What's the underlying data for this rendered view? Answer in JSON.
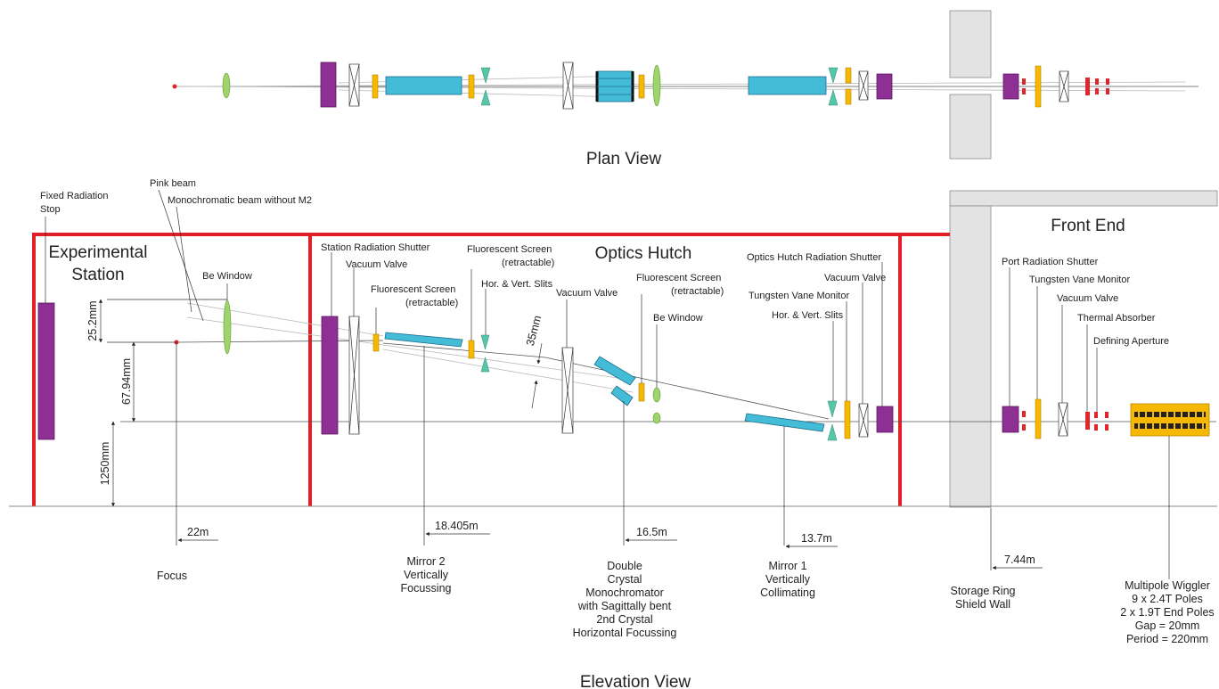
{
  "colors": {
    "hutch_wall": "#e11f26",
    "shutter": "#8e2f93",
    "mirror": "#44bcd8",
    "screen": "#f6b800",
    "window": "#9fd36b",
    "slits": "#56c6a8",
    "absorber": "#e0262c",
    "shield_wall": "#e3e3e3",
    "wiggler": "#f6b800"
  },
  "views": {
    "plan_title": "Plan View",
    "elevation_title": "Elevation View"
  },
  "hutches": {
    "experimental": [
      "Experimental",
      "Station"
    ],
    "optics": "Optics Hutch",
    "front_end": "Front End"
  },
  "labels": {
    "fixed_radiation_stop": [
      "Fixed Radiation",
      "Stop"
    ],
    "pink_beam": "Pink beam",
    "mono_beam": "Monochromatic beam without M2",
    "be_window_exp": "Be Window",
    "station_shutter": "Station Radiation Shutter",
    "vacuum_valve_1": "Vacuum Valve",
    "fluor_screen_1": [
      "Fluorescent Screen",
      "(retractable)"
    ],
    "fluor_screen_2": [
      "Fluorescent Screen",
      "(retractable)"
    ],
    "slits_1": "Hor. & Vert. Slits",
    "vacuum_valve_2": "Vacuum Valve",
    "fluor_screen_3": [
      "Fluorescent Screen",
      "(retractable)"
    ],
    "be_window_optics": "Be Window",
    "optics_shutter": "Optics Hutch Radiation Shutter",
    "vacuum_valve_3": "Vacuum Valve",
    "tungsten_vane_1": "Tungsten Vane Monitor",
    "slits_2": "Hor. & Vert. Slits",
    "port_shutter": "Port Radiation Shutter",
    "tungsten_vane_2": "Tungsten Vane Monitor",
    "vacuum_valve_4": "Vacuum Valve",
    "thermal_absorber": "Thermal Absorber",
    "defining_aperture": "Defining Aperture"
  },
  "dimensions": {
    "offset_1": "25.2mm",
    "offset_2": "67.94mm",
    "beam_height": "1250mm",
    "crystal_offset": "35mm"
  },
  "distances": {
    "focus": "22m",
    "mirror2": "18.405m",
    "mono": "16.5m",
    "mirror1": "13.7m",
    "shield_wall": "7.44m"
  },
  "components": {
    "focus": [
      "Focus"
    ],
    "mirror2": [
      "Mirror 2",
      "Vertically",
      "Focussing"
    ],
    "mono": [
      "Double",
      "Crystal",
      "Monochromator",
      "with Sagittally bent",
      "2nd Crystal",
      "Horizontal Focussing"
    ],
    "mirror1": [
      "Mirror 1",
      "Vertically",
      "Collimating"
    ],
    "shield_wall": [
      "Storage Ring",
      "Shield Wall"
    ],
    "wiggler": [
      "Multipole Wiggler",
      "9 x 2.4T Poles",
      "2 x 1.9T End Poles",
      "Gap = 20mm",
      "Period = 220mm"
    ]
  }
}
